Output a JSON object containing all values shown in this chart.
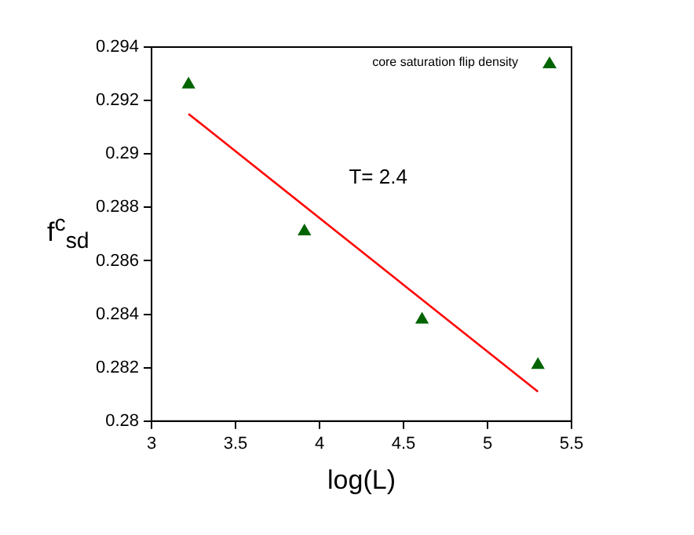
{
  "chart_data": {
    "type": "scatter",
    "xlabel": "log(L)",
    "ylabel": "f$^{c}$$_{sd}$",
    "annotations": [
      "T= 2.4"
    ],
    "xlim": [
      3,
      5.5
    ],
    "xticks": [
      3,
      3.5,
      4,
      4.5,
      5,
      5.5
    ],
    "ylim": [
      0.28,
      0.294
    ],
    "yticks": [
      0.28,
      0.282,
      0.284,
      0.286,
      0.288,
      0.29,
      0.292,
      0.294
    ],
    "grid": false,
    "legend": "top right",
    "marker": "triangle",
    "series": [
      {
        "name": "core saturation flip density",
        "color": "#006400",
        "x": [
          3.22,
          3.91,
          4.61,
          5.3
        ],
        "values": [
          0.2926,
          0.2871,
          0.2838,
          0.2821
        ]
      },
      {
        "type": "line",
        "color": "#ff0000",
        "marker": "none",
        "x": [
          3.22,
          5.3
        ],
        "values": [
          0.2915,
          0.2811
        ]
      }
    ]
  }
}
